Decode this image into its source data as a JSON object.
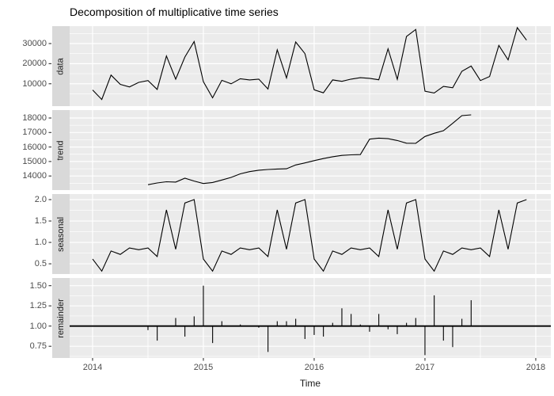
{
  "chart_data": {
    "type": "line",
    "title": "Decomposition of multiplicative time series",
    "xlabel": "Time",
    "x_ticks": [
      2014,
      2015,
      2016,
      2017,
      2018
    ],
    "frequency": "monthly",
    "x_range_shown": [
      2013.79,
      2018.14
    ],
    "panels": [
      {
        "name": "data",
        "style": "line",
        "start": 2014.0,
        "yticks": [
          {
            "label": "30000",
            "value": 30000
          },
          {
            "label": "20000",
            "value": 20000
          },
          {
            "label": "10000",
            "value": 10000
          }
        ],
        "ylim": [
          -1126,
          38668
        ],
        "values": [
          6900,
          2200,
          14300,
          9700,
          8400,
          10700,
          11600,
          7200,
          23800,
          12300,
          23300,
          31000,
          11000,
          3000,
          11700,
          10000,
          12500,
          11900,
          12300,
          7400,
          26900,
          12900,
          30800,
          25000,
          7000,
          5500,
          11900,
          11200,
          12300,
          13000,
          12700,
          12000,
          27400,
          12200,
          33500,
          37000,
          6300,
          5400,
          8700,
          8000,
          16200,
          18800,
          11600,
          13600,
          29100,
          21900,
          37900,
          31700
        ]
      },
      {
        "name": "trend",
        "style": "line",
        "start": 2014.5,
        "yticks": [
          {
            "label": "18000",
            "value": 18000
          },
          {
            "label": "17000",
            "value": 17000
          },
          {
            "label": "16000",
            "value": 16000
          },
          {
            "label": "15000",
            "value": 15000
          },
          {
            "label": "14000",
            "value": 14000
          }
        ],
        "ylim": [
          13028,
          18546
        ],
        "values": [
          13400,
          13520,
          13600,
          13580,
          13850,
          13650,
          13480,
          13550,
          13720,
          13900,
          14150,
          14300,
          14400,
          14450,
          14480,
          14500,
          14760,
          14900,
          15060,
          15200,
          15330,
          15420,
          15460,
          15475,
          16540,
          16610,
          16575,
          16450,
          16260,
          16250,
          16725,
          16945,
          17125,
          17635,
          18165,
          18220
        ]
      },
      {
        "name": "seasonal",
        "style": "line",
        "start": 2014.0,
        "yticks": [
          {
            "label": "2.0",
            "value": 2.0
          },
          {
            "label": "1.5",
            "value": 1.5
          },
          {
            "label": "1.0",
            "value": 1.0
          },
          {
            "label": "0.5",
            "value": 0.5
          }
        ],
        "ylim": [
          0.261,
          2.13
        ],
        "values": [
          0.61,
          0.33,
          0.8,
          0.72,
          0.87,
          0.83,
          0.87,
          0.67,
          1.76,
          0.84,
          1.92,
          2.0,
          0.61,
          0.33,
          0.8,
          0.72,
          0.87,
          0.83,
          0.87,
          0.67,
          1.76,
          0.84,
          1.92,
          2.0,
          0.61,
          0.33,
          0.8,
          0.72,
          0.87,
          0.83,
          0.87,
          0.67,
          1.76,
          0.84,
          1.92,
          2.0,
          0.61,
          0.33,
          0.8,
          0.72,
          0.87,
          0.83,
          0.87,
          0.67,
          1.76,
          0.84,
          1.92,
          2.0
        ]
      },
      {
        "name": "remainder",
        "style": "segments",
        "baseline": 1.0,
        "start": 2014.5,
        "yticks": [
          {
            "label": "1.50",
            "value": 1.5
          },
          {
            "label": "1.25",
            "value": 1.25
          },
          {
            "label": "1.00",
            "value": 1.0
          },
          {
            "label": "0.75",
            "value": 0.75
          }
        ],
        "ylim": [
          0.605,
          1.595
        ],
        "values": [
          0.95,
          0.82,
          1.0,
          1.1,
          0.87,
          1.12,
          1.5,
          0.79,
          1.06,
          1.0,
          1.02,
          1.0,
          0.98,
          0.68,
          1.06,
          1.06,
          1.09,
          0.84,
          0.89,
          0.87,
          1.04,
          1.22,
          1.15,
          1.02,
          0.93,
          1.15,
          0.96,
          0.9,
          1.04,
          1.1,
          0.64,
          1.38,
          0.82,
          0.74,
          1.09,
          1.32
        ]
      }
    ],
    "theme": {
      "panel_bg": "#EBEBEB",
      "strip_bg": "#D9D9D9",
      "grid": "#FFFFFF",
      "line": "#000000",
      "axis_text": "#4D4D4D",
      "tick_mark": "#333333",
      "title_color": "#000000"
    }
  }
}
